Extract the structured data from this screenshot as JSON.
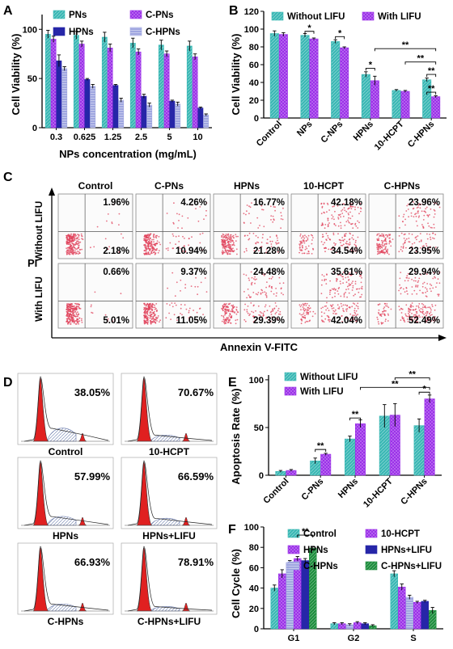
{
  "colors": {
    "teal": "#3BB8B5",
    "purple": "#9B30E8",
    "navy": "#2626A8",
    "lavender": "#9FA6E0",
    "dark_green": "#1E8E3E",
    "red_peak": "#E02020",
    "scatter": "#E0405A",
    "quadrant_line": "#555555"
  },
  "panels": {
    "A": {
      "letter": "A",
      "ylabel": "Cell Viability (%)",
      "xlabel": "NPs concentration (mg/mL)"
    },
    "B": {
      "letter": "B",
      "ylabel": "Cell Viability (%)"
    },
    "C": {
      "letter": "C",
      "columns": [
        "Control",
        "C-PNs",
        "HPNs",
        "10-HCPT",
        "C-HPNs"
      ],
      "row_labels": [
        "Without LIFU",
        "With LIFU"
      ],
      "y_axis": "PI",
      "x_axis": "Annexin V-FITC",
      "upper_right": [
        [
          "1.96%",
          "4.26%",
          "16.77%",
          "42.18%",
          "23.96%"
        ],
        [
          "0.66%",
          "9.37%",
          "24.48%",
          "35.61%",
          "29.94%"
        ]
      ],
      "lower_right": [
        [
          "2.18%",
          "10.94%",
          "21.28%",
          "34.54%",
          "23.95%"
        ],
        [
          "5.01%",
          "11.05%",
          "29.39%",
          "42.04%",
          "52.49%"
        ]
      ]
    },
    "D": {
      "letter": "D",
      "plots": [
        {
          "label": "Control",
          "percent": "38.05%"
        },
        {
          "label": "10-HCPT",
          "percent": "70.67%"
        },
        {
          "label": "HPNs",
          "percent": "57.99%"
        },
        {
          "label": "HPNs+LIFU",
          "percent": "66.59%"
        },
        {
          "label": "C-HPNs",
          "percent": "66.93%"
        },
        {
          "label": "C-HPNs+LIFU",
          "percent": "78.91%"
        }
      ]
    },
    "E": {
      "letter": "E",
      "ylabel": "Apoptosis Rate (%)"
    },
    "F": {
      "letter": "F",
      "ylabel": "Cell Cycle (%)"
    }
  },
  "chart_data": [
    {
      "panel": "A",
      "type": "bar",
      "categories": [
        "0.3",
        "0.625",
        "1.25",
        "2.5",
        "5",
        "10"
      ],
      "series": [
        {
          "name": "PNs",
          "values": [
            95,
            94,
            92,
            86,
            84,
            83
          ],
          "errors": [
            4,
            4,
            5,
            5,
            5,
            5
          ]
        },
        {
          "name": "C-PNs",
          "values": [
            90,
            85,
            81,
            77,
            75,
            72
          ],
          "errors": [
            3,
            3,
            4,
            3,
            3,
            3
          ]
        },
        {
          "name": "HPNs",
          "values": [
            68,
            49,
            43,
            32,
            27,
            20
          ],
          "errors": [
            6,
            1,
            1,
            2,
            1,
            1
          ]
        },
        {
          "name": "C-HPNs",
          "values": [
            60,
            42,
            28,
            23,
            24,
            13
          ],
          "errors": [
            2,
            2,
            2,
            2,
            2,
            1
          ]
        }
      ],
      "yticks": [
        0,
        50,
        100
      ],
      "ylim": [
        0,
        115
      ],
      "ylabel": "Cell Viability (%)",
      "xlabel": "NPs concentration (mg/mL)"
    },
    {
      "panel": "B",
      "type": "bar",
      "categories": [
        "Control",
        "NPs",
        "C-NPs",
        "HPNs",
        "10-HCPT",
        "C-HPNs"
      ],
      "series": [
        {
          "name": "Without LIFU",
          "values": [
            95,
            93,
            86,
            49,
            31,
            43
          ],
          "errors": [
            3,
            2,
            2,
            3,
            1,
            2
          ]
        },
        {
          "name": "With LIFU",
          "values": [
            94,
            89,
            79,
            42,
            30,
            24
          ],
          "errors": [
            2,
            1,
            1,
            5,
            1,
            1
          ]
        }
      ],
      "yticks": [
        0,
        20,
        40,
        60,
        80,
        100,
        120
      ],
      "ylim": [
        0,
        120
      ],
      "ylabel": "Cell Viability (%)"
    },
    {
      "panel": "E",
      "type": "bar",
      "categories": [
        "Control",
        "C-PNs",
        "HPNs",
        "10-HCPT",
        "C-HPNs"
      ],
      "series": [
        {
          "name": "Without LIFU",
          "values": [
            4,
            15,
            38,
            62,
            52
          ],
          "errors": [
            1,
            3,
            3,
            12,
            7
          ]
        },
        {
          "name": "With LIFU",
          "values": [
            5,
            22,
            54,
            63,
            80
          ],
          "errors": [
            1,
            1,
            4,
            12,
            4
          ]
        }
      ],
      "yticks": [
        0,
        50,
        100
      ],
      "ylim": [
        0,
        105
      ],
      "ylabel": "Apoptosis Rate (%)"
    },
    {
      "panel": "F",
      "type": "bar",
      "categories": [
        "G1",
        "G2",
        "S"
      ],
      "series": [
        {
          "name": "Control",
          "values": [
            40,
            5,
            54
          ],
          "errors": [
            3,
            1,
            3
          ]
        },
        {
          "name": "HPNs",
          "values": [
            54,
            5,
            41
          ],
          "errors": [
            4,
            1,
            3
          ]
        },
        {
          "name": "C-HPNs",
          "values": [
            65,
            4,
            31
          ],
          "errors": [
            2,
            1,
            2
          ]
        },
        {
          "name": "10-HCPT",
          "values": [
            69,
            6,
            26
          ],
          "errors": [
            2,
            1,
            1
          ]
        },
        {
          "name": "HPNs+LIFU",
          "values": [
            67,
            5,
            27
          ],
          "errors": [
            2,
            1,
            1
          ]
        },
        {
          "name": "C-HPNs+LIFU",
          "values": [
            79,
            3,
            18
          ],
          "errors": [
            2,
            1,
            3
          ]
        }
      ],
      "yticks": [
        0,
        20,
        40,
        60,
        80,
        100
      ],
      "ylim": [
        0,
        100
      ],
      "ylabel": "Cell Cycle (%)"
    }
  ],
  "significance": {
    "single": "*",
    "double": "**"
  }
}
